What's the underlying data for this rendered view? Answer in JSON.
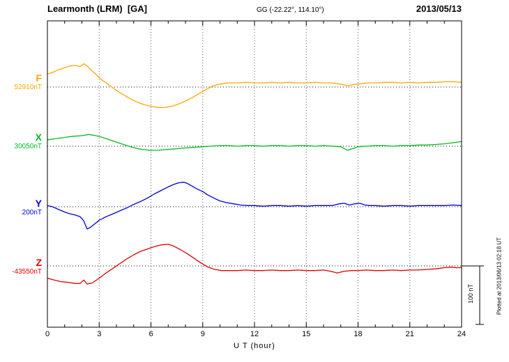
{
  "header": {
    "title": "Learmonth (LRM)  [GA]",
    "coords": "GG (-22.22°, 114.10°)",
    "date": "2013/05/13"
  },
  "footer_note": "Plotted at 2013/06/13 02:18 UT",
  "scale_bar": {
    "label": "100 nT",
    "nT": 100
  },
  "chart_data": {
    "type": "line",
    "title": "Learmonth (LRM) [GA] magnetogram for 2013/05/13",
    "xlabel": "U T (hour)",
    "xlim": [
      0,
      24
    ],
    "x_major_ticks": [
      0,
      3,
      6,
      9,
      12,
      15,
      18,
      21,
      24
    ],
    "x_minor_step": 1,
    "grid": "vertical dotted lines at 3-hour marks; horizontal dotted baseline per series",
    "y_unit": "nT offset from baseline",
    "series": [
      {
        "name": "F",
        "label": "F",
        "baseline_label": "52910nT",
        "baseline_nT": 52910,
        "color": "#FFA500",
        "points": [
          [
            0,
            22
          ],
          [
            0.3,
            25
          ],
          [
            0.7,
            30
          ],
          [
            1,
            33
          ],
          [
            1.3,
            36
          ],
          [
            1.6,
            37
          ],
          [
            1.9,
            35
          ],
          [
            2.1,
            40
          ],
          [
            2.3,
            36
          ],
          [
            2.5,
            30
          ],
          [
            2.8,
            22
          ],
          [
            3,
            16
          ],
          [
            3.3,
            9
          ],
          [
            3.6,
            3
          ],
          [
            4,
            -6
          ],
          [
            4.4,
            -13
          ],
          [
            4.8,
            -20
          ],
          [
            5.2,
            -26
          ],
          [
            5.6,
            -30
          ],
          [
            6,
            -33
          ],
          [
            6.4,
            -35
          ],
          [
            6.8,
            -35
          ],
          [
            7.2,
            -33
          ],
          [
            7.6,
            -29
          ],
          [
            8,
            -24
          ],
          [
            8.4,
            -18
          ],
          [
            8.8,
            -11
          ],
          [
            9.2,
            -4
          ],
          [
            9.6,
            2
          ],
          [
            10,
            5
          ],
          [
            10.4,
            7
          ],
          [
            11,
            7
          ],
          [
            11.5,
            8
          ],
          [
            12,
            7
          ],
          [
            12.5,
            7
          ],
          [
            13,
            8
          ],
          [
            13.5,
            7
          ],
          [
            14,
            8
          ],
          [
            14.5,
            7
          ],
          [
            15,
            7
          ],
          [
            15.5,
            8
          ],
          [
            16,
            7
          ],
          [
            16.5,
            7
          ],
          [
            17,
            5
          ],
          [
            17.4,
            2
          ],
          [
            17.7,
            4
          ],
          [
            18,
            5
          ],
          [
            18.5,
            7
          ],
          [
            19,
            7
          ],
          [
            19.5,
            8
          ],
          [
            20,
            8
          ],
          [
            20.5,
            7
          ],
          [
            21,
            8
          ],
          [
            21.5,
            7
          ],
          [
            22,
            8
          ],
          [
            22.5,
            8
          ],
          [
            23,
            9
          ],
          [
            23.5,
            9
          ],
          [
            24,
            8
          ]
        ]
      },
      {
        "name": "X",
        "label": "X",
        "baseline_label": "30050nT",
        "baseline_nT": 30050,
        "color": "#00BB22",
        "points": [
          [
            0,
            11
          ],
          [
            0.5,
            13
          ],
          [
            1,
            15
          ],
          [
            1.5,
            17
          ],
          [
            2,
            18
          ],
          [
            2.4,
            20
          ],
          [
            2.8,
            18
          ],
          [
            3.2,
            15
          ],
          [
            3.6,
            11
          ],
          [
            4,
            7
          ],
          [
            4.4,
            3
          ],
          [
            4.8,
            -1
          ],
          [
            5.2,
            -4
          ],
          [
            5.6,
            -6
          ],
          [
            6,
            -7
          ],
          [
            6.4,
            -7
          ],
          [
            6.8,
            -6
          ],
          [
            7.2,
            -5
          ],
          [
            7.6,
            -4
          ],
          [
            8,
            -3
          ],
          [
            8.5,
            -2
          ],
          [
            9,
            -1
          ],
          [
            9.5,
            0
          ],
          [
            10,
            1
          ],
          [
            10.5,
            1
          ],
          [
            11,
            0
          ],
          [
            11.5,
            1
          ],
          [
            12,
            1
          ],
          [
            12.5,
            0
          ],
          [
            13,
            1
          ],
          [
            13.5,
            1
          ],
          [
            14,
            0
          ],
          [
            14.5,
            1
          ],
          [
            15,
            1
          ],
          [
            15.5,
            0
          ],
          [
            16,
            1
          ],
          [
            16.5,
            0
          ],
          [
            17,
            -1
          ],
          [
            17.4,
            -7
          ],
          [
            17.7,
            -4
          ],
          [
            18,
            -1
          ],
          [
            18.5,
            0
          ],
          [
            19,
            1
          ],
          [
            19.5,
            1
          ],
          [
            20,
            0
          ],
          [
            20.5,
            1
          ],
          [
            21,
            1
          ],
          [
            21.5,
            2
          ],
          [
            22,
            2
          ],
          [
            22.5,
            3
          ],
          [
            23,
            4
          ],
          [
            23.5,
            6
          ],
          [
            24,
            8
          ]
        ]
      },
      {
        "name": "Y",
        "label": "Y",
        "baseline_label": "200nT",
        "baseline_nT": 200,
        "color": "#0000CC",
        "points": [
          [
            0,
            2
          ],
          [
            0.3,
            0
          ],
          [
            0.6,
            -4
          ],
          [
            1,
            -9
          ],
          [
            1.3,
            -12
          ],
          [
            1.6,
            -14
          ],
          [
            1.9,
            -17
          ],
          [
            2.1,
            -24
          ],
          [
            2.3,
            -38
          ],
          [
            2.5,
            -35
          ],
          [
            2.8,
            -28
          ],
          [
            3,
            -23
          ],
          [
            3.4,
            -17
          ],
          [
            3.8,
            -12
          ],
          [
            4.2,
            -7
          ],
          [
            4.6,
            -2
          ],
          [
            5,
            4
          ],
          [
            5.4,
            9
          ],
          [
            5.8,
            15
          ],
          [
            6.2,
            22
          ],
          [
            6.6,
            28
          ],
          [
            7,
            34
          ],
          [
            7.3,
            38
          ],
          [
            7.6,
            41
          ],
          [
            7.9,
            42
          ],
          [
            8.1,
            40
          ],
          [
            8.4,
            35
          ],
          [
            8.7,
            30
          ],
          [
            9,
            26
          ],
          [
            9.3,
            20
          ],
          [
            9.7,
            14
          ],
          [
            10,
            10
          ],
          [
            10.4,
            7
          ],
          [
            10.8,
            5
          ],
          [
            11.2,
            3
          ],
          [
            11.6,
            2
          ],
          [
            12,
            2
          ],
          [
            12.5,
            1
          ],
          [
            13,
            2
          ],
          [
            13.5,
            2
          ],
          [
            14,
            1
          ],
          [
            14.5,
            2
          ],
          [
            15,
            1
          ],
          [
            15.5,
            2
          ],
          [
            16,
            2
          ],
          [
            16.5,
            2
          ],
          [
            16.9,
            5
          ],
          [
            17.2,
            6
          ],
          [
            17.5,
            3
          ],
          [
            17.8,
            5
          ],
          [
            18.1,
            6
          ],
          [
            18.4,
            3
          ],
          [
            18.7,
            2
          ],
          [
            19,
            2
          ],
          [
            19.5,
            1
          ],
          [
            20,
            2
          ],
          [
            20.5,
            2
          ],
          [
            21,
            1
          ],
          [
            21.5,
            2
          ],
          [
            22,
            2
          ],
          [
            22.5,
            2
          ],
          [
            23,
            2
          ],
          [
            23.5,
            3
          ],
          [
            24,
            2
          ]
        ]
      },
      {
        "name": "Z",
        "label": "Z",
        "baseline_label": "-43550nT",
        "baseline_nT": -43550,
        "color": "#DD0000",
        "points": [
          [
            0,
            -21
          ],
          [
            0.4,
            -24
          ],
          [
            0.8,
            -27
          ],
          [
            1.2,
            -28
          ],
          [
            1.6,
            -30
          ],
          [
            1.9,
            -30
          ],
          [
            2.1,
            -24
          ],
          [
            2.3,
            -31
          ],
          [
            2.6,
            -29
          ],
          [
            3,
            -21
          ],
          [
            3.4,
            -12
          ],
          [
            3.8,
            -4
          ],
          [
            4.2,
            4
          ],
          [
            4.6,
            12
          ],
          [
            5,
            19
          ],
          [
            5.4,
            25
          ],
          [
            5.8,
            29
          ],
          [
            6.2,
            33
          ],
          [
            6.6,
            36
          ],
          [
            7,
            37
          ],
          [
            7.3,
            34
          ],
          [
            7.7,
            28
          ],
          [
            8.1,
            21
          ],
          [
            8.5,
            13
          ],
          [
            8.9,
            5
          ],
          [
            9.3,
            -2
          ],
          [
            9.7,
            -6
          ],
          [
            10.1,
            -8
          ],
          [
            10.5,
            -8
          ],
          [
            11,
            -8
          ],
          [
            11.5,
            -7
          ],
          [
            12,
            -8
          ],
          [
            12.5,
            -8
          ],
          [
            13,
            -7
          ],
          [
            13.5,
            -8
          ],
          [
            14,
            -8
          ],
          [
            14.5,
            -7
          ],
          [
            15,
            -8
          ],
          [
            15.5,
            -8
          ],
          [
            16,
            -7
          ],
          [
            16.4,
            -9
          ],
          [
            16.8,
            -12
          ],
          [
            17.2,
            -9
          ],
          [
            17.6,
            -8
          ],
          [
            18,
            -8
          ],
          [
            18.5,
            -7
          ],
          [
            19,
            -8
          ],
          [
            19.5,
            -8
          ],
          [
            20,
            -7
          ],
          [
            20.5,
            -8
          ],
          [
            21,
            -7
          ],
          [
            21.5,
            -7
          ],
          [
            22,
            -6
          ],
          [
            22.5,
            -5
          ],
          [
            23,
            -3
          ],
          [
            23.4,
            -2
          ],
          [
            23.7,
            -3
          ],
          [
            24,
            -3
          ]
        ]
      }
    ]
  }
}
